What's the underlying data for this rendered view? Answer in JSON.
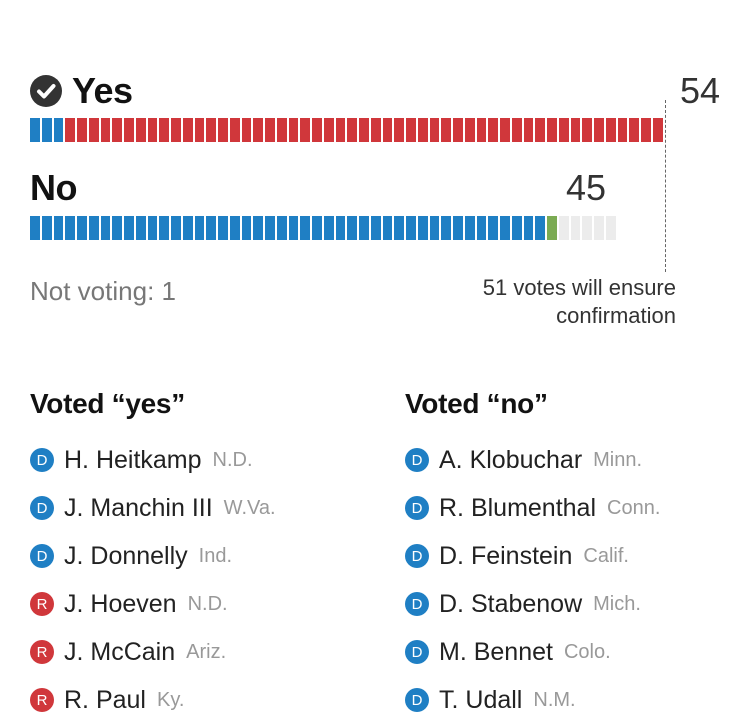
{
  "chart_data": {
    "type": "bar",
    "yes": {
      "label": "Yes",
      "count": "54",
      "democrats": 3,
      "republicans": 51
    },
    "no": {
      "label": "No",
      "count": "45",
      "democrats": 44,
      "independents": 1,
      "open": 5
    },
    "total_seats": 55,
    "threshold": 51,
    "threshold_note": "51 votes will ensure confirmation",
    "not_voting": "Not voting: 1",
    "colors": {
      "democrat": "#1f7fc4",
      "republican": "#d0373b",
      "independent": "#7bab53",
      "empty": "#ececec",
      "check": "#333333"
    }
  },
  "lists": {
    "yes_heading": "Voted “yes”",
    "no_heading": "Voted “no”",
    "yes": [
      {
        "party": "D",
        "name": "H. Heitkamp",
        "state": "N.D."
      },
      {
        "party": "D",
        "name": "J. Manchin III",
        "state": "W.Va."
      },
      {
        "party": "D",
        "name": "J. Donnelly",
        "state": "Ind."
      },
      {
        "party": "R",
        "name": "J. Hoeven",
        "state": "N.D."
      },
      {
        "party": "R",
        "name": "J. McCain",
        "state": "Ariz."
      },
      {
        "party": "R",
        "name": "R. Paul",
        "state": "Ky."
      }
    ],
    "no": [
      {
        "party": "D",
        "name": "A. Klobuchar",
        "state": "Minn."
      },
      {
        "party": "D",
        "name": "R. Blumenthal",
        "state": "Conn."
      },
      {
        "party": "D",
        "name": "D. Feinstein",
        "state": "Calif."
      },
      {
        "party": "D",
        "name": "D. Stabenow",
        "state": "Mich."
      },
      {
        "party": "D",
        "name": "M. Bennet",
        "state": "Colo."
      },
      {
        "party": "D",
        "name": "T. Udall",
        "state": "N.M."
      }
    ]
  }
}
